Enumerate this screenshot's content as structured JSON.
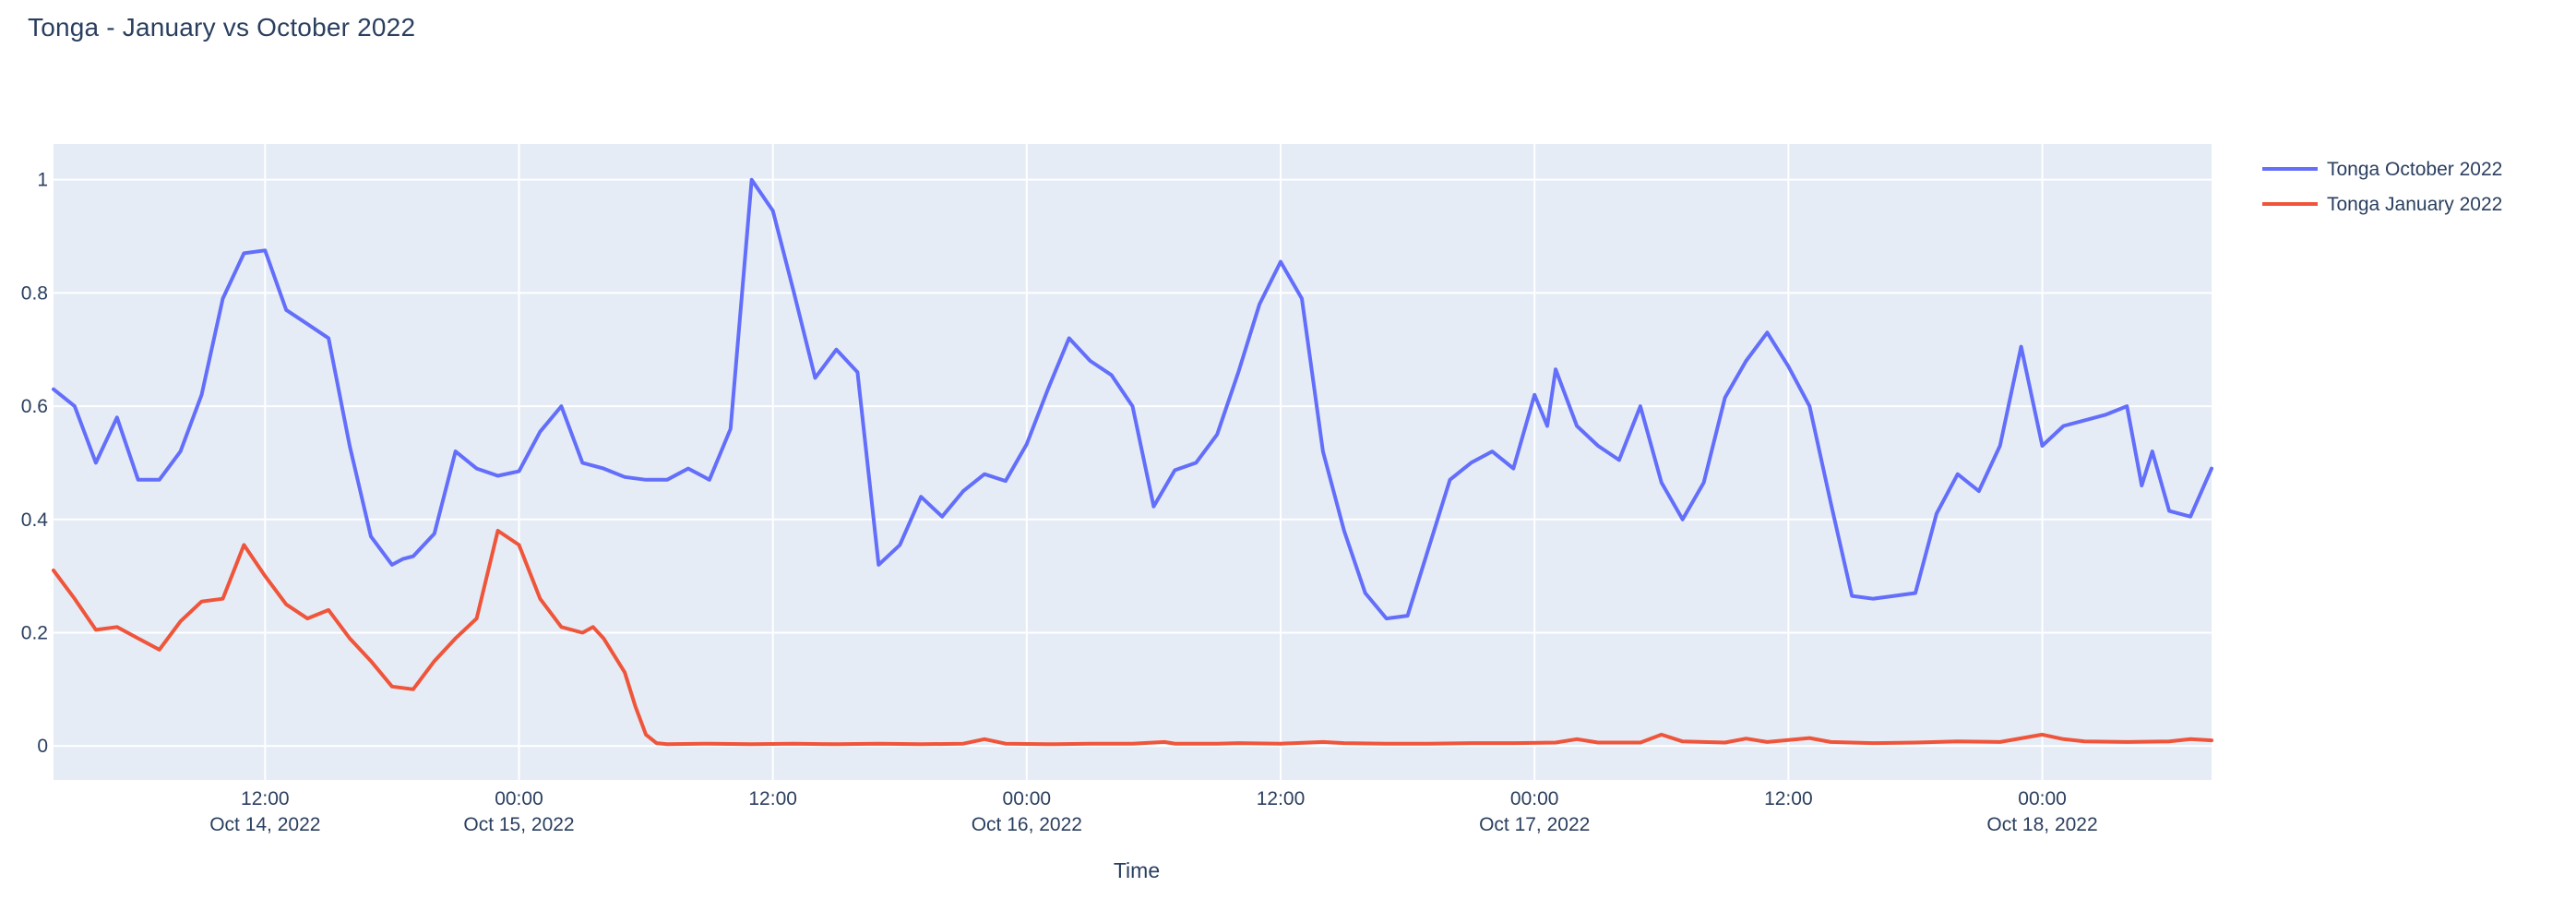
{
  "title": "Tonga - January vs October 2022",
  "colors": {
    "paper_bg": "#FFFFFF",
    "plot_bg": "#E5ECF6",
    "grid": "#FFFFFF",
    "text": "#2A3F5F",
    "series_october": "#636EFA",
    "series_january": "#EF553B"
  },
  "chart_data": {
    "type": "line",
    "title": "Tonga - January vs October 2022",
    "xlabel": "Time",
    "ylabel": "",
    "x_unit": "hours since Oct 14, 2022 00:00",
    "xlim": [
      2,
      104
    ],
    "ylim": [
      -0.06,
      1.063
    ],
    "grid": true,
    "legend_position": "right-top",
    "x_ticks": [
      {
        "t": 12,
        "time": "12:00",
        "date": "Oct 14, 2022"
      },
      {
        "t": 24,
        "time": "00:00",
        "date": "Oct 15, 2022"
      },
      {
        "t": 36,
        "time": "12:00",
        "date": ""
      },
      {
        "t": 48,
        "time": "00:00",
        "date": "Oct 16, 2022"
      },
      {
        "t": 60,
        "time": "12:00",
        "date": ""
      },
      {
        "t": 72,
        "time": "00:00",
        "date": "Oct 17, 2022"
      },
      {
        "t": 84,
        "time": "12:00",
        "date": ""
      },
      {
        "t": 96,
        "time": "00:00",
        "date": "Oct 18, 2022"
      }
    ],
    "y_ticks": [
      {
        "v": 0,
        "label": "0"
      },
      {
        "v": 0.2,
        "label": "0.2"
      },
      {
        "v": 0.4,
        "label": "0.4"
      },
      {
        "v": 0.6,
        "label": "0.6"
      },
      {
        "v": 0.8,
        "label": "0.8"
      },
      {
        "v": 1,
        "label": "1"
      }
    ],
    "series": [
      {
        "name": "Tonga October 2022",
        "color": "#636EFA",
        "points": [
          [
            2,
            0.63
          ],
          [
            3,
            0.6
          ],
          [
            4,
            0.5
          ],
          [
            5,
            0.58
          ],
          [
            6,
            0.47
          ],
          [
            7,
            0.47
          ],
          [
            8,
            0.52
          ],
          [
            9,
            0.62
          ],
          [
            10,
            0.79
          ],
          [
            11,
            0.87
          ],
          [
            12,
            0.875
          ],
          [
            13,
            0.77
          ],
          [
            14,
            0.745
          ],
          [
            15,
            0.72
          ],
          [
            16,
            0.53
          ],
          [
            17,
            0.37
          ],
          [
            18,
            0.32
          ],
          [
            18.5,
            0.33
          ],
          [
            19,
            0.335
          ],
          [
            20,
            0.375
          ],
          [
            21,
            0.52
          ],
          [
            22,
            0.49
          ],
          [
            23,
            0.477
          ],
          [
            24,
            0.485
          ],
          [
            25,
            0.555
          ],
          [
            26,
            0.6
          ],
          [
            27,
            0.5
          ],
          [
            28,
            0.49
          ],
          [
            29,
            0.475
          ],
          [
            30,
            0.47
          ],
          [
            31,
            0.47
          ],
          [
            32,
            0.49
          ],
          [
            33,
            0.47
          ],
          [
            34,
            0.56
          ],
          [
            35,
            1.0
          ],
          [
            36,
            0.945
          ],
          [
            37,
            0.8
          ],
          [
            38,
            0.65
          ],
          [
            39,
            0.7
          ],
          [
            40,
            0.66
          ],
          [
            41,
            0.32
          ],
          [
            42,
            0.355
          ],
          [
            43,
            0.44
          ],
          [
            44,
            0.405
          ],
          [
            45,
            0.45
          ],
          [
            46,
            0.48
          ],
          [
            47,
            0.468
          ],
          [
            48,
            0.533
          ],
          [
            49,
            0.63
          ],
          [
            50,
            0.72
          ],
          [
            51,
            0.68
          ],
          [
            52,
            0.655
          ],
          [
            53,
            0.6
          ],
          [
            54,
            0.423
          ],
          [
            55,
            0.487
          ],
          [
            56,
            0.5
          ],
          [
            57,
            0.55
          ],
          [
            58,
            0.66
          ],
          [
            59,
            0.78
          ],
          [
            60,
            0.855
          ],
          [
            61,
            0.79
          ],
          [
            62,
            0.52
          ],
          [
            63,
            0.38
          ],
          [
            64,
            0.27
          ],
          [
            65,
            0.225
          ],
          [
            66,
            0.23
          ],
          [
            67,
            0.35
          ],
          [
            68,
            0.47
          ],
          [
            69,
            0.5
          ],
          [
            70,
            0.52
          ],
          [
            71,
            0.49
          ],
          [
            72,
            0.62
          ],
          [
            72.6,
            0.565
          ],
          [
            73,
            0.665
          ],
          [
            74,
            0.565
          ],
          [
            75,
            0.53
          ],
          [
            76,
            0.505
          ],
          [
            77,
            0.6
          ],
          [
            78,
            0.465
          ],
          [
            79,
            0.4
          ],
          [
            80,
            0.465
          ],
          [
            81,
            0.615
          ],
          [
            82,
            0.68
          ],
          [
            83,
            0.73
          ],
          [
            84,
            0.67
          ],
          [
            85,
            0.6
          ],
          [
            86,
            0.43
          ],
          [
            87,
            0.265
          ],
          [
            88,
            0.26
          ],
          [
            89,
            0.265
          ],
          [
            90,
            0.27
          ],
          [
            91,
            0.41
          ],
          [
            92,
            0.48
          ],
          [
            93,
            0.45
          ],
          [
            94,
            0.53
          ],
          [
            95,
            0.705
          ],
          [
            96,
            0.53
          ],
          [
            97,
            0.565
          ],
          [
            98,
            0.575
          ],
          [
            99,
            0.585
          ],
          [
            100,
            0.6
          ],
          [
            100.7,
            0.46
          ],
          [
            101.2,
            0.52
          ],
          [
            102,
            0.415
          ],
          [
            103,
            0.405
          ],
          [
            104,
            0.49
          ]
        ]
      },
      {
        "name": "Tonga January 2022",
        "color": "#EF553B",
        "points": [
          [
            2,
            0.31
          ],
          [
            3,
            0.26
          ],
          [
            4,
            0.205
          ],
          [
            5,
            0.21
          ],
          [
            6,
            0.19
          ],
          [
            7,
            0.17
          ],
          [
            8,
            0.22
          ],
          [
            9,
            0.255
          ],
          [
            10,
            0.26
          ],
          [
            11,
            0.355
          ],
          [
            12,
            0.3
          ],
          [
            13,
            0.25
          ],
          [
            14,
            0.225
          ],
          [
            15,
            0.24
          ],
          [
            16,
            0.19
          ],
          [
            17,
            0.15
          ],
          [
            18,
            0.105
          ],
          [
            19,
            0.1
          ],
          [
            20,
            0.15
          ],
          [
            21,
            0.19
          ],
          [
            22,
            0.225
          ],
          [
            23,
            0.38
          ],
          [
            24,
            0.355
          ],
          [
            25,
            0.26
          ],
          [
            26,
            0.21
          ],
          [
            27,
            0.2
          ],
          [
            27.5,
            0.21
          ],
          [
            28,
            0.19
          ],
          [
            29,
            0.13
          ],
          [
            29.5,
            0.07
          ],
          [
            30,
            0.02
          ],
          [
            30.5,
            0.005
          ],
          [
            31,
            0.003
          ],
          [
            33,
            0.004
          ],
          [
            35,
            0.003
          ],
          [
            37,
            0.004
          ],
          [
            39,
            0.003
          ],
          [
            41,
            0.004
          ],
          [
            43,
            0.003
          ],
          [
            45,
            0.004
          ],
          [
            46,
            0.012
          ],
          [
            47,
            0.004
          ],
          [
            49,
            0.003
          ],
          [
            51,
            0.004
          ],
          [
            53,
            0.004
          ],
          [
            54.5,
            0.007
          ],
          [
            55,
            0.004
          ],
          [
            57,
            0.004
          ],
          [
            58,
            0.005
          ],
          [
            60,
            0.004
          ],
          [
            62,
            0.007
          ],
          [
            63,
            0.005
          ],
          [
            65,
            0.004
          ],
          [
            67,
            0.004
          ],
          [
            69,
            0.005
          ],
          [
            71,
            0.005
          ],
          [
            73,
            0.006
          ],
          [
            74,
            0.012
          ],
          [
            75,
            0.006
          ],
          [
            77,
            0.006
          ],
          [
            78,
            0.02
          ],
          [
            79,
            0.008
          ],
          [
            81,
            0.006
          ],
          [
            82,
            0.013
          ],
          [
            83,
            0.007
          ],
          [
            85,
            0.014
          ],
          [
            86,
            0.007
          ],
          [
            88,
            0.005
          ],
          [
            90,
            0.006
          ],
          [
            92,
            0.008
          ],
          [
            94,
            0.007
          ],
          [
            96,
            0.02
          ],
          [
            97,
            0.012
          ],
          [
            98,
            0.008
          ],
          [
            100,
            0.007
          ],
          [
            102,
            0.008
          ],
          [
            103,
            0.012
          ],
          [
            104,
            0.01
          ]
        ]
      }
    ]
  }
}
